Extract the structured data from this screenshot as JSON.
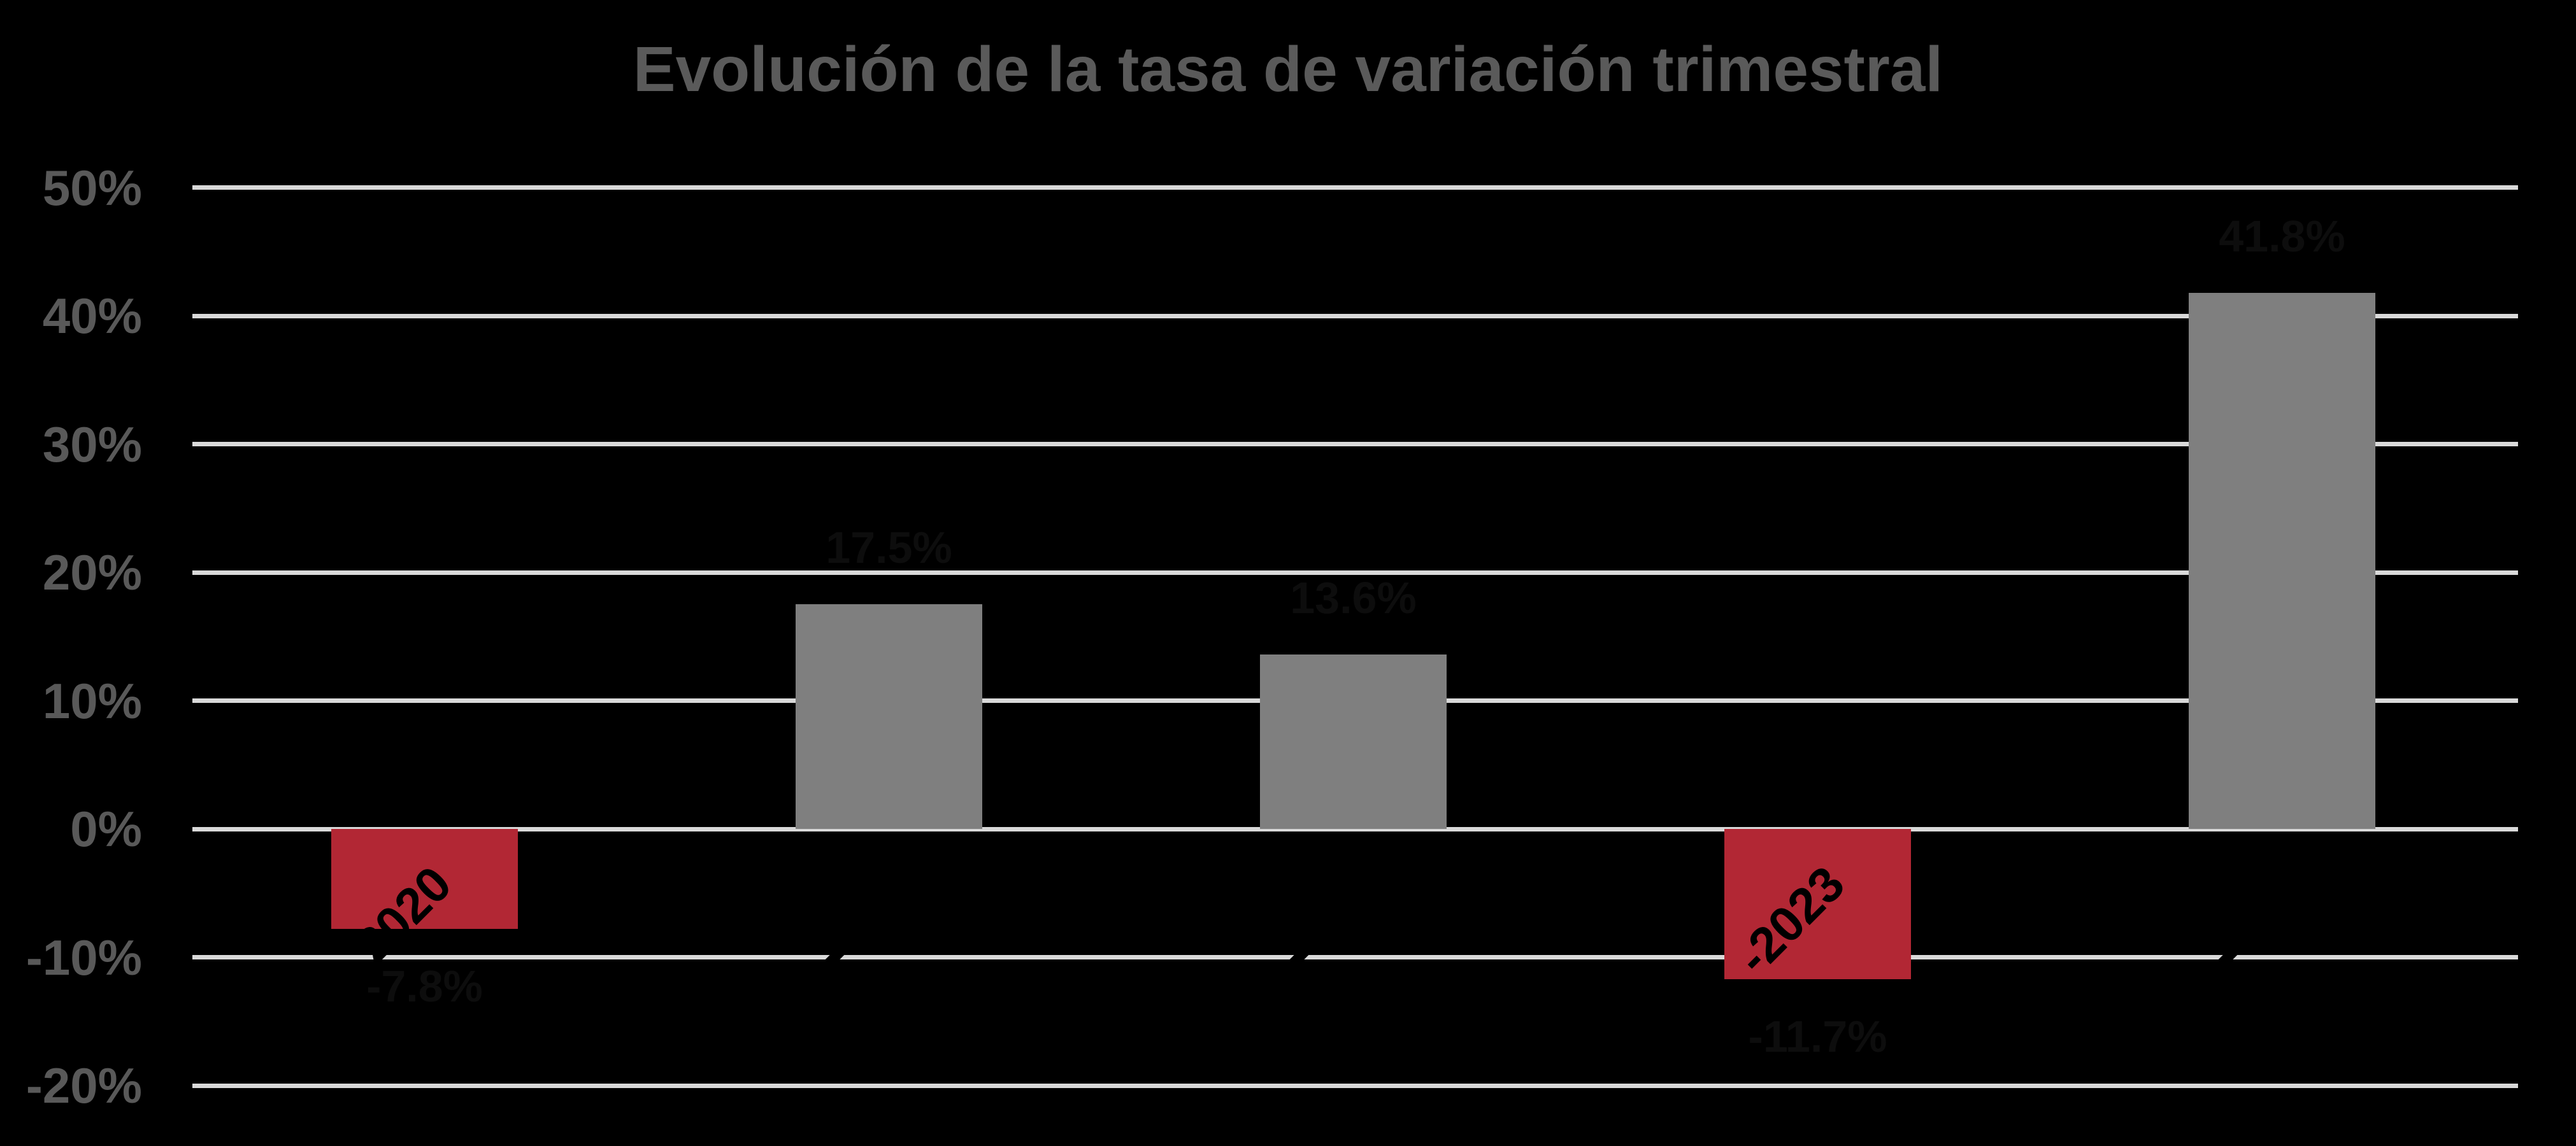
{
  "title": {
    "text": "Evolución de la tasa de variación trimestral"
  },
  "colors": {
    "background": "#000000",
    "gridline": "#D9D9D9",
    "title": "#5A5A5A",
    "y_tick_label": "#595959",
    "bar_positive": "#7F7F7F",
    "bar_negative": "#B22734",
    "value_label": "#0D0D0D",
    "x_tick_label": "#000000"
  },
  "chart_data": {
    "type": "bar",
    "title": "Evolución de la tasa de variación trimestral",
    "xlabel": "",
    "ylabel": "",
    "values": [
      -7.8,
      17.5,
      13.6,
      -11.7,
      41.8
    ],
    "value_labels": [
      "-7.8%",
      "17.5%",
      "13.6%",
      "-11.7%",
      "41.8%"
    ],
    "categories_visible_fragments": [
      "2020",
      "",
      "",
      "-2023",
      ""
    ],
    "y_tick_values": [
      50,
      40,
      30,
      20,
      10,
      0,
      -10,
      -20
    ],
    "y_tick_labels": [
      "50%",
      "40%",
      "30%",
      "20%",
      "10%",
      "0%",
      "-10%",
      "-20%"
    ],
    "ylim": [
      -20,
      50
    ],
    "grid": true,
    "legend": false,
    "bar_color_rule": "positive values gray, negative values crimson"
  }
}
